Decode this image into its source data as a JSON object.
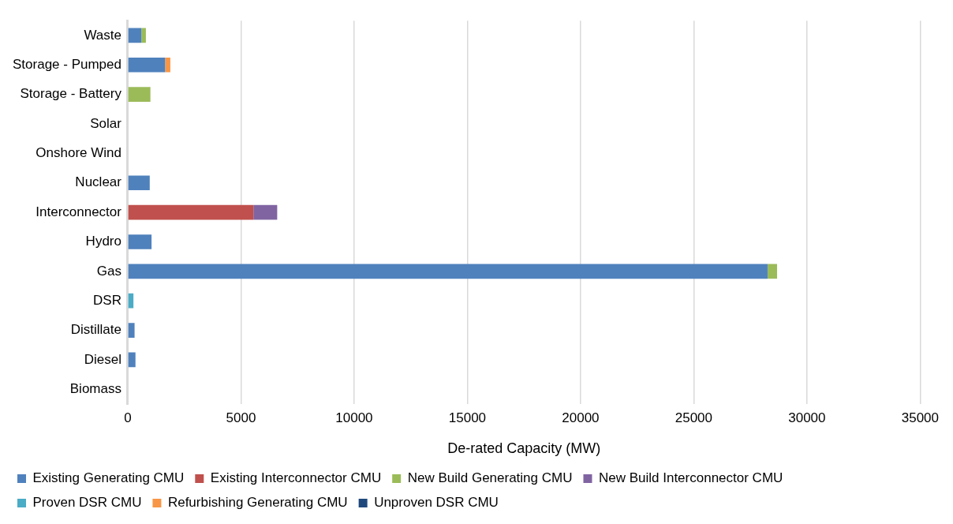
{
  "chart_data": {
    "type": "bar",
    "orientation": "horizontal",
    "stacked": true,
    "xlabel": "De-rated Capacity (MW)",
    "categories": [
      "Waste",
      "Storage - Pumped",
      "Storage - Battery",
      "Solar",
      "Onshore Wind",
      "Nuclear",
      "Interconnector",
      "Hydro",
      "Gas",
      "DSR",
      "Distillate",
      "Diesel",
      "Biomass"
    ],
    "series": [
      {
        "name": "Existing Generating CMU",
        "color": "#4f81bd",
        "values": [
          600,
          1650,
          0,
          0,
          null,
          970,
          0,
          1050,
          28260,
          0,
          300,
          340,
          0
        ]
      },
      {
        "name": "Existing Interconnector CMU",
        "color": "#c0504d",
        "values": [
          0,
          0,
          0,
          0,
          0,
          0,
          5550,
          0,
          0,
          0,
          0,
          0,
          0
        ]
      },
      {
        "name": "New Build Generating CMU",
        "color": "#9bbb59",
        "values": [
          200,
          0,
          1000,
          0,
          0,
          0,
          0,
          0,
          420,
          0,
          0,
          0,
          0
        ]
      },
      {
        "name": "New Build Interconnector CMU",
        "color": "#8064a2",
        "values": [
          0,
          0,
          0,
          0,
          0,
          0,
          1050,
          0,
          0,
          0,
          0,
          0,
          0
        ]
      },
      {
        "name": "Proven DSR CMU",
        "color": "#4bacc6",
        "values": [
          0,
          0,
          0,
          0,
          0,
          0,
          0,
          0,
          0,
          250,
          0,
          0,
          0
        ]
      },
      {
        "name": "Refurbishing Generating CMU",
        "color": "#f79646",
        "values": [
          0,
          230,
          0,
          0,
          0,
          0,
          0,
          0,
          0,
          0,
          0,
          0,
          0
        ]
      },
      {
        "name": "Unproven DSR CMU",
        "color": "#1f497d",
        "values": [
          0,
          0,
          0,
          0,
          0,
          0,
          0,
          0,
          0,
          0,
          0,
          0,
          0
        ]
      }
    ],
    "xlim": [
      0,
      35000
    ],
    "xticks": [
      0,
      5000,
      10000,
      15000,
      20000,
      25000,
      30000,
      35000
    ],
    "grid": "x",
    "legend": "bottom"
  }
}
